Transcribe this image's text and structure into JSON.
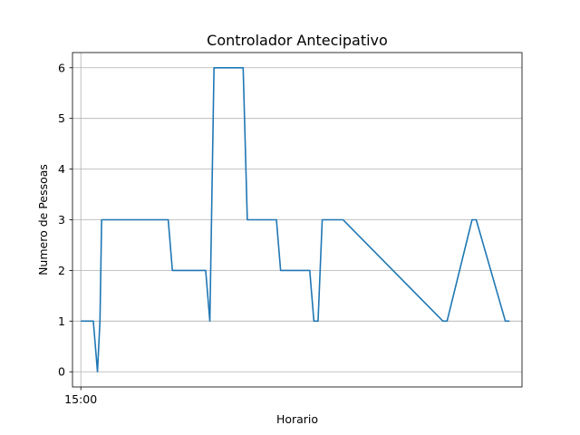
{
  "chart_data": {
    "type": "line",
    "title": "Controlador Antecipativo",
    "xlabel": "Horario",
    "ylabel": "Numero de Pessoas",
    "x_ticks": [
      {
        "x": 0,
        "label": "15:00"
      }
    ],
    "y_ticks": [
      0,
      1,
      2,
      3,
      4,
      5,
      6
    ],
    "xlim": [
      -1.0,
      53.0
    ],
    "ylim": [
      -0.3,
      6.3
    ],
    "grid": true,
    "series": [
      {
        "color": "#1f77b4",
        "x": [
          0,
          1.5,
          2,
          2.3,
          2.5,
          10.5,
          11,
          15,
          15.5,
          16,
          19.5,
          20,
          23.5,
          24,
          27.5,
          28,
          28.5,
          29,
          31,
          31.5,
          43.5,
          44,
          47,
          47.5,
          51,
          51.5
        ],
        "y": [
          1,
          1,
          0,
          1,
          3,
          3,
          2,
          2,
          1,
          6,
          6,
          3,
          3,
          2,
          2,
          1,
          1,
          3,
          3,
          3,
          1,
          1,
          3,
          3,
          1,
          1
        ]
      }
    ]
  }
}
